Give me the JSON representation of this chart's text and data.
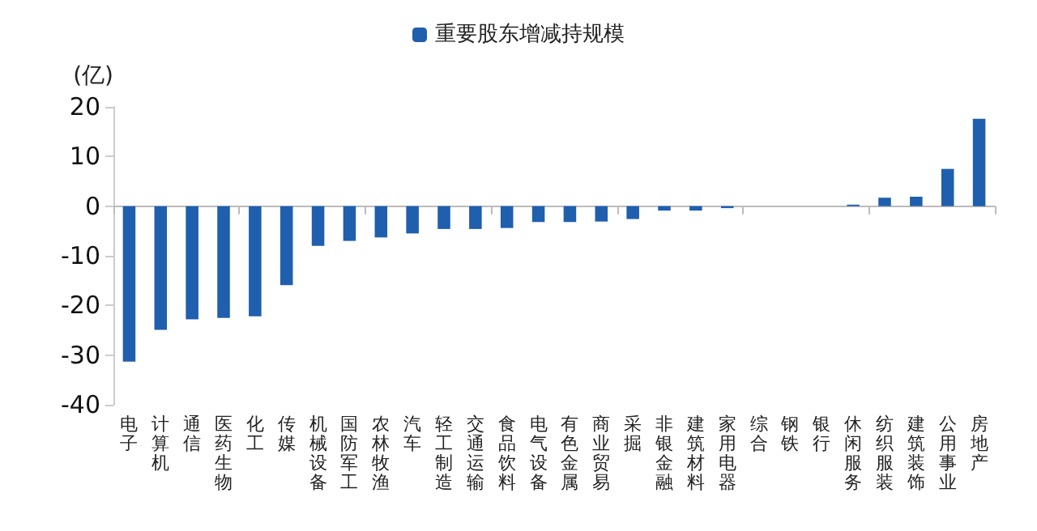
{
  "chart_data": {
    "type": "bar",
    "ylabel": "(亿)",
    "categories": [
      "电子",
      "计算机",
      "通信",
      "医药生物",
      "化工",
      "传媒",
      "机械设备",
      "国防军工",
      "农林牧渔",
      "汽车",
      "轻工制造",
      "交通运输",
      "食品饮料",
      "电气设备",
      "有色金属",
      "商业贸易",
      "采掘",
      "非银金融",
      "建筑材料",
      "家用电器",
      "综合",
      "钢铁",
      "银行",
      "休闲服务",
      "纺织服装",
      "建筑装饰",
      "公用事业",
      "房地产"
    ],
    "series": [
      {
        "name": "重要股东增减持规模",
        "color": "#1f5fad",
        "values": [
          -31.3,
          -24.9,
          -22.8,
          -22.5,
          -22.2,
          -15.9,
          -8.0,
          -7.0,
          -6.3,
          -5.5,
          -4.6,
          -4.6,
          -4.4,
          -3.2,
          -3.2,
          -3.1,
          -2.6,
          -0.9,
          -0.9,
          -0.4,
          0,
          0,
          0,
          0.3,
          1.7,
          1.9,
          7.5,
          17.6
        ]
      }
    ],
    "ylim": [
      -40,
      20
    ],
    "yticks": [
      -40,
      -30,
      -20,
      -10,
      0,
      10,
      20
    ],
    "legend": "top"
  }
}
